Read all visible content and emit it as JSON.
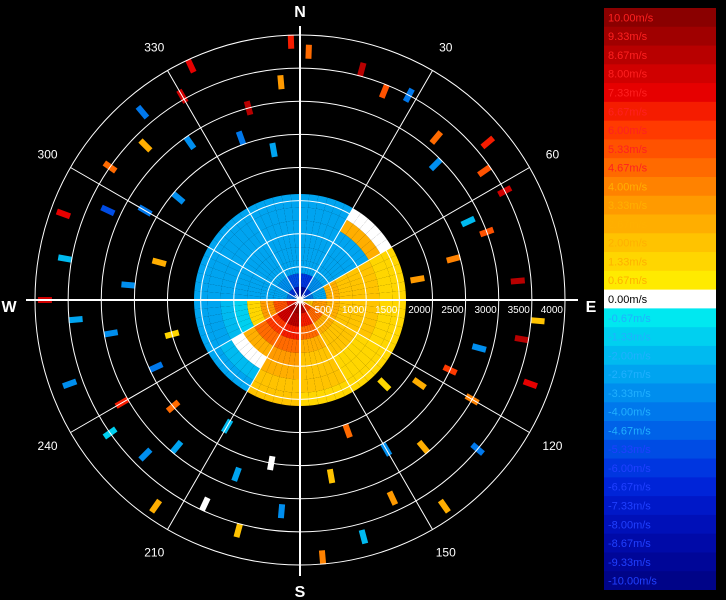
{
  "chart_data": {
    "type": "heatmap",
    "title": "",
    "range_labels": [
      "500",
      "1000",
      "1500",
      "2000",
      "2500",
      "3000",
      "3500",
      "4000"
    ],
    "range_max": 4000,
    "compass": {
      "n": "N",
      "e": "E",
      "s": "S",
      "w": "W"
    },
    "azimuth_labels": [
      {
        "deg": 30,
        "text": "30"
      },
      {
        "deg": 60,
        "text": "60"
      },
      {
        "deg": 120,
        "text": "120"
      },
      {
        "deg": 150,
        "text": "150"
      },
      {
        "deg": 210,
        "text": "210"
      },
      {
        "deg": 240,
        "text": "240"
      },
      {
        "deg": 300,
        "text": "300"
      },
      {
        "deg": 330,
        "text": "330"
      }
    ],
    "grid_step_deg": 30,
    "grid": true,
    "colorbar": {
      "labels": [
        "10.00m/s",
        "9.33m/s",
        "8.67m/s",
        "8.00m/s",
        "7.33m/s",
        "6.67m/s",
        "6.00m/s",
        "5.33m/s",
        "4.67m/s",
        "4.00m/s",
        "3.33m/s",
        "2.67m/s",
        "2.00m/s",
        "1.33m/s",
        "0.67m/s",
        "0.00m/s",
        "-0.67m/s",
        "-1.33m/s",
        "-2.00m/s",
        "-2.67m/s",
        "-3.33m/s",
        "-4.00m/s",
        "-4.67m/s",
        "-5.33m/s",
        "-6.00m/s",
        "-6.67m/s",
        "-7.33m/s",
        "-8.00m/s",
        "-8.67m/s",
        "-9.33m/s",
        "-10.00m/s"
      ],
      "colors": [
        "#8a0000",
        "#a00000",
        "#b80000",
        "#d00000",
        "#e60000",
        "#f51c00",
        "#ff3a00",
        "#ff5200",
        "#ff6a00",
        "#ff8200",
        "#ff9a00",
        "#ffae00",
        "#ffc300",
        "#ffd600",
        "#ffea00",
        "#ffffff",
        "#00e8f0",
        "#00d0f0",
        "#00baf0",
        "#00a4f0",
        "#008eee",
        "#0078ec",
        "#0062e8",
        "#004ce4",
        "#0036e0",
        "#0024d8",
        "#0018c8",
        "#0010b8",
        "#000aa8",
        "#000698",
        "#000488"
      ]
    },
    "velocity_field": {
      "description_of_values": "radial velocity (m/s) vs azimuth and range",
      "rings_m": [
        200,
        400,
        600,
        800,
        1000,
        1200,
        1400,
        1600
      ],
      "sectors": [
        {
          "az": [
            0,
            30
          ],
          "v": [
            -9,
            -6,
            -2.5,
            -2.8,
            -2.7,
            -2.7,
            -2.6,
            -2.6
          ]
        },
        {
          "az": [
            30,
            60
          ],
          "v": [
            -6,
            -3,
            -2.5,
            -2.5,
            -2.7,
            -2.7,
            2.5,
            0
          ]
        },
        {
          "az": [
            60,
            90
          ],
          "v": [
            -4,
            -2.5,
            2.5,
            2,
            2,
            1.8,
            1.6,
            1.5
          ]
        },
        {
          "az": [
            90,
            120
          ],
          "v": [
            2,
            3.5,
            2.5,
            2,
            2,
            1.8,
            1.5,
            1.2
          ]
        },
        {
          "az": [
            120,
            150
          ],
          "v": [
            6,
            4.5,
            3,
            2,
            1.8,
            1.6,
            1.4,
            1.2
          ]
        },
        {
          "az": [
            150,
            180
          ],
          "v": [
            8.5,
            7,
            5,
            3,
            2.3,
            2,
            1.8,
            1.5
          ]
        },
        {
          "az": [
            180,
            210
          ],
          "v": [
            9.5,
            8.5,
            6.5,
            5,
            3.5,
            2.5,
            2,
            1.8
          ]
        },
        {
          "az": [
            210,
            240
          ],
          "v": [
            8.5,
            8,
            6,
            5,
            3,
            0,
            -2,
            -2.5
          ]
        },
        {
          "az": [
            240,
            270
          ],
          "v": [
            7,
            5.5,
            3.5,
            1.5,
            -1,
            -2,
            -2.5,
            -2.5
          ]
        },
        {
          "az": [
            270,
            300
          ],
          "v": [
            -4,
            -2.5,
            -2.5,
            -2.7,
            -2.7,
            -2.7,
            -2.6,
            -2.6
          ]
        },
        {
          "az": [
            300,
            330
          ],
          "v": [
            -6,
            -3,
            -2.5,
            -2.7,
            -2.7,
            -2.7,
            -2.6,
            -2.6
          ]
        },
        {
          "az": [
            330,
            360
          ],
          "v": [
            -8,
            -5,
            -2.5,
            -2.7,
            -2.7,
            -2.7,
            -2.6,
            -2.6
          ]
        }
      ],
      "scatter_echoes": [
        {
          "az": 358,
          "r": 3900,
          "v": 6.5
        },
        {
          "az": 2,
          "r": 3750,
          "v": 4.5
        },
        {
          "az": 15,
          "r": 3600,
          "v": 9
        },
        {
          "az": 22,
          "r": 3400,
          "v": 5.5
        },
        {
          "az": 28,
          "r": 3500,
          "v": -4
        },
        {
          "az": 40,
          "r": 3200,
          "v": 5
        },
        {
          "az": 45,
          "r": 2900,
          "v": -3
        },
        {
          "az": 50,
          "r": 3700,
          "v": 7
        },
        {
          "az": 55,
          "r": 3400,
          "v": 5.5
        },
        {
          "az": 62,
          "r": 3500,
          "v": 8
        },
        {
          "az": 65,
          "r": 2800,
          "v": -2
        },
        {
          "az": 70,
          "r": 3000,
          "v": 5.5
        },
        {
          "az": 75,
          "r": 2400,
          "v": 4
        },
        {
          "az": 80,
          "r": 1800,
          "v": 3.5
        },
        {
          "az": 85,
          "r": 3300,
          "v": 9
        },
        {
          "az": 95,
          "r": 3600,
          "v": 2
        },
        {
          "az": 100,
          "r": 3400,
          "v": 8.5
        },
        {
          "az": 105,
          "r": 2800,
          "v": -3
        },
        {
          "az": 110,
          "r": 3700,
          "v": 7.5
        },
        {
          "az": 115,
          "r": 2500,
          "v": 6
        },
        {
          "az": 120,
          "r": 3000,
          "v": 4
        },
        {
          "az": 125,
          "r": 2200,
          "v": 2.5
        },
        {
          "az": 130,
          "r": 3500,
          "v": -4
        },
        {
          "az": 135,
          "r": 1800,
          "v": 1.5
        },
        {
          "az": 140,
          "r": 2900,
          "v": 3
        },
        {
          "az": 145,
          "r": 3800,
          "v": 2.5
        },
        {
          "az": 150,
          "r": 2600,
          "v": -3
        },
        {
          "az": 155,
          "r": 3300,
          "v": 3.5
        },
        {
          "az": 160,
          "r": 2100,
          "v": 5
        },
        {
          "az": 165,
          "r": 3700,
          "v": -2
        },
        {
          "az": 170,
          "r": 2700,
          "v": 2
        },
        {
          "az": 175,
          "r": 3900,
          "v": 4
        },
        {
          "az": 185,
          "r": 3200,
          "v": -3
        },
        {
          "az": 190,
          "r": 2500,
          "v": 0
        },
        {
          "az": 195,
          "r": 3600,
          "v": 2
        },
        {
          "az": 200,
          "r": 2800,
          "v": -2.5
        },
        {
          "az": 205,
          "r": 3400,
          "v": 0
        },
        {
          "az": 210,
          "r": 2200,
          "v": -2
        },
        {
          "az": 215,
          "r": 3800,
          "v": 3
        },
        {
          "az": 220,
          "r": 2900,
          "v": -2.5
        },
        {
          "az": 225,
          "r": 3300,
          "v": -3
        },
        {
          "az": 230,
          "r": 2500,
          "v": 5
        },
        {
          "az": 235,
          "r": 3500,
          "v": -1.5
        },
        {
          "az": 240,
          "r": 3100,
          "v": 7
        },
        {
          "az": 245,
          "r": 2400,
          "v": -4
        },
        {
          "az": 250,
          "r": 3700,
          "v": -3.5
        },
        {
          "az": 255,
          "r": 2000,
          "v": 1.5
        },
        {
          "az": 260,
          "r": 2900,
          "v": -3
        },
        {
          "az": 265,
          "r": 3400,
          "v": -2.5
        },
        {
          "az": 270,
          "r": 3850,
          "v": 8
        },
        {
          "az": 275,
          "r": 2600,
          "v": -3
        },
        {
          "az": 280,
          "r": 3600,
          "v": -2
        },
        {
          "az": 285,
          "r": 2200,
          "v": 3
        },
        {
          "az": 290,
          "r": 3800,
          "v": 7.5
        },
        {
          "az": 295,
          "r": 3200,
          "v": -5
        },
        {
          "az": 300,
          "r": 2700,
          "v": -4
        },
        {
          "az": 305,
          "r": 3500,
          "v": 4.5
        },
        {
          "az": 310,
          "r": 2400,
          "v": -3
        },
        {
          "az": 315,
          "r": 3300,
          "v": 3
        },
        {
          "az": 320,
          "r": 3700,
          "v": -4
        },
        {
          "az": 325,
          "r": 2900,
          "v": -3
        },
        {
          "az": 330,
          "r": 3550,
          "v": 8
        },
        {
          "az": 335,
          "r": 3900,
          "v": 7.5
        },
        {
          "az": 340,
          "r": 2600,
          "v": -4
        },
        {
          "az": 345,
          "r": 3000,
          "v": 9
        },
        {
          "az": 350,
          "r": 2300,
          "v": -2.5
        },
        {
          "az": 355,
          "r": 3300,
          "v": 3.5
        }
      ]
    }
  }
}
